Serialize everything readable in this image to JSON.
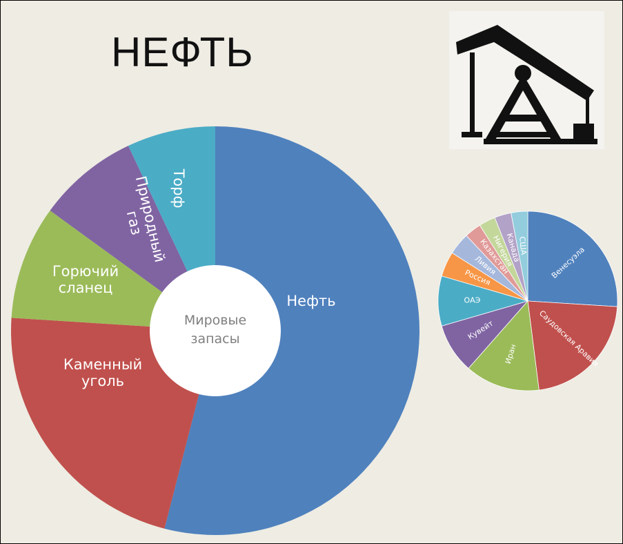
{
  "title": "НЕФТЬ",
  "chart_data": [
    {
      "type": "donut",
      "center_label": "Мировые запасы",
      "categories": [
        "Нефть",
        "Каменный уголь",
        "Горючий сланец",
        "Природный газ",
        "Торф"
      ],
      "values": [
        54,
        22,
        9,
        8,
        7
      ],
      "colors": [
        "#4f81bd",
        "#c0504d",
        "#9bbb59",
        "#8064a2",
        "#4bacc6"
      ]
    },
    {
      "type": "pie",
      "categories": [
        "Венесуэла",
        "Саудовская Аравия",
        "Иран",
        "Кувейт",
        "ОАЭ",
        "Россия",
        "Ливия",
        "Казахстан",
        "Нигерия",
        "Канада",
        "США"
      ],
      "values": [
        26,
        22,
        13.5,
        9,
        9,
        4.5,
        4,
        3,
        3,
        3,
        3
      ],
      "colors": [
        "#4f81bd",
        "#c0504d",
        "#9bbb59",
        "#8064a2",
        "#4bacc6",
        "#f79646",
        "#a5b8dc",
        "#e09a98",
        "#c4d79b",
        "#b3a2c7",
        "#93cddd"
      ]
    }
  ]
}
